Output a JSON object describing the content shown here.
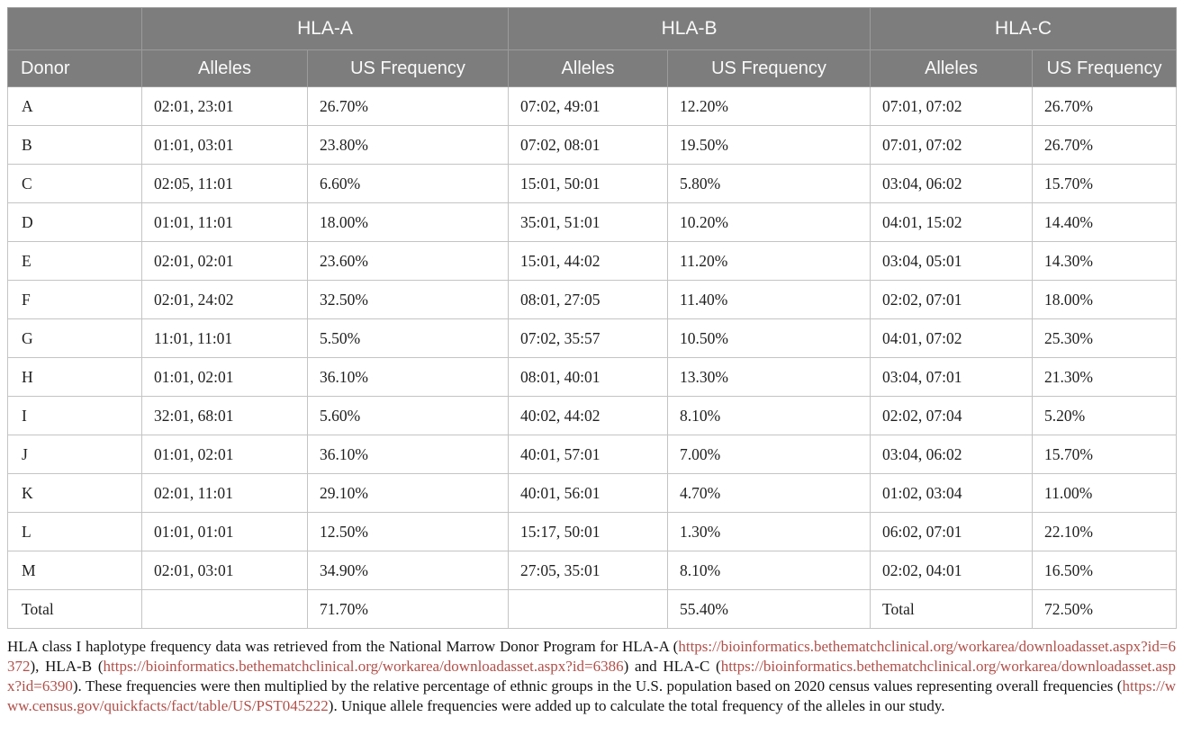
{
  "table": {
    "groups": [
      {
        "label": "HLA-A"
      },
      {
        "label": "HLA-B"
      },
      {
        "label": "HLA-C"
      }
    ],
    "columns": [
      "Donor",
      "Alleles",
      "US Frequency",
      "Alleles",
      "US Frequency",
      "Alleles",
      "US Frequency"
    ],
    "rows": [
      {
        "donor": "A",
        "cells": [
          "02:01, 23:01",
          "26.70%",
          "07:02, 49:01",
          "12.20%",
          "07:01, 07:02",
          "26.70%"
        ]
      },
      {
        "donor": "B",
        "cells": [
          "01:01, 03:01",
          "23.80%",
          "07:02, 08:01",
          "19.50%",
          "07:01, 07:02",
          "26.70%"
        ]
      },
      {
        "donor": "C",
        "cells": [
          "02:05, 11:01",
          "6.60%",
          "15:01, 50:01",
          "5.80%",
          "03:04, 06:02",
          "15.70%"
        ]
      },
      {
        "donor": "D",
        "cells": [
          "01:01, 11:01",
          "18.00%",
          "35:01, 51:01",
          "10.20%",
          "04:01, 15:02",
          "14.40%"
        ]
      },
      {
        "donor": "E",
        "cells": [
          "02:01, 02:01",
          "23.60%",
          "15:01, 44:02",
          "11.20%",
          "03:04, 05:01",
          "14.30%"
        ]
      },
      {
        "donor": "F",
        "cells": [
          "02:01, 24:02",
          "32.50%",
          "08:01, 27:05",
          "11.40%",
          "02:02, 07:01",
          "18.00%"
        ]
      },
      {
        "donor": "G",
        "cells": [
          "11:01, 11:01",
          "5.50%",
          "07:02, 35:57",
          "10.50%",
          "04:01, 07:02",
          "25.30%"
        ]
      },
      {
        "donor": "H",
        "cells": [
          "01:01, 02:01",
          "36.10%",
          "08:01, 40:01",
          "13.30%",
          "03:04, 07:01",
          "21.30%"
        ]
      },
      {
        "donor": "I",
        "cells": [
          "32:01, 68:01",
          "5.60%",
          "40:02, 44:02",
          "8.10%",
          "02:02, 07:04",
          "5.20%"
        ]
      },
      {
        "donor": "J",
        "cells": [
          "01:01, 02:01",
          "36.10%",
          "40:01, 57:01",
          "7.00%",
          "03:04, 06:02",
          "15.70%"
        ]
      },
      {
        "donor": "K",
        "cells": [
          "02:01, 11:01",
          "29.10%",
          "40:01, 56:01",
          "4.70%",
          "01:02, 03:04",
          "11.00%"
        ]
      },
      {
        "donor": "L",
        "cells": [
          "01:01, 01:01",
          "12.50%",
          "15:17, 50:01",
          "1.30%",
          "06:02, 07:01",
          "22.10%"
        ]
      },
      {
        "donor": "M",
        "cells": [
          "02:01, 03:01",
          "34.90%",
          "27:05, 35:01",
          "8.10%",
          "02:02, 04:01",
          "16.50%"
        ]
      }
    ],
    "total_row": {
      "donor": "Total",
      "cells": [
        "",
        "71.70%",
        "",
        "55.40%",
        "Total",
        "72.50%"
      ]
    }
  },
  "footnote": {
    "segments": [
      {
        "type": "text",
        "text": "HLA class I haplotype frequency data was retrieved from the National Marrow Donor Program for HLA-A ("
      },
      {
        "type": "link",
        "text": "https://bioinformatics.bethematchclinical.org/workarea/downloadasset.aspx?id=6372"
      },
      {
        "type": "text",
        "text": "), HLA-B ("
      },
      {
        "type": "link",
        "text": "https://bioinformatics.bethematchclinical.org/workarea/downloadasset.aspx?id=6386"
      },
      {
        "type": "text",
        "text": ") and HLA-C ("
      },
      {
        "type": "link",
        "text": "https://bioinformatics.bethematchclinical.org/workarea/downloadasset.aspx?id=6390"
      },
      {
        "type": "text",
        "text": "). These frequencies were then multiplied by the relative percentage of ethnic groups in the U.S. population based on 2020 census values representing overall frequencies ("
      },
      {
        "type": "link",
        "text": "https://www.census.gov/quickfacts/fact/table/US/PST045222"
      },
      {
        "type": "text",
        "text": "). Unique allele frequencies were added up to calculate the total frequency of the alleles in our study."
      }
    ]
  },
  "colors": {
    "header_bg": "#7d7d7d",
    "header_border": "#9b9b9b",
    "header_text": "#fafafa",
    "body_border": "#c4c4c4",
    "body_text": "#1f1f1f",
    "link": "#b0504a",
    "page_bg": "#ffffff"
  }
}
